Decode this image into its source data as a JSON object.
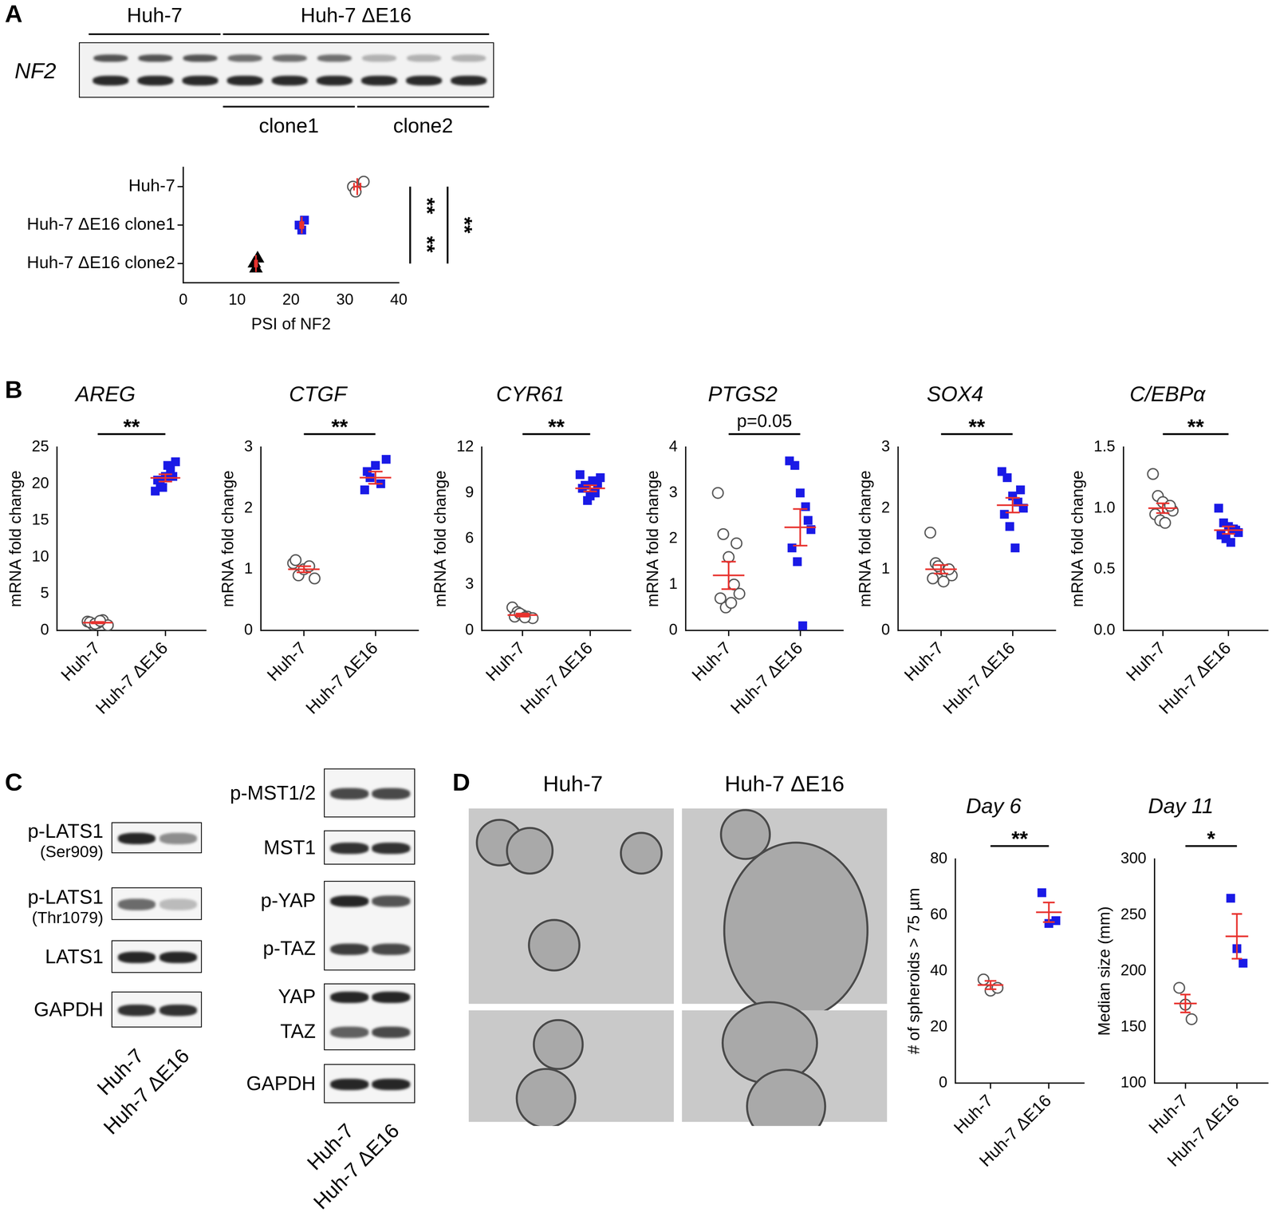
{
  "panel_labels": [
    "A",
    "B",
    "C",
    "D"
  ],
  "gel": {
    "gene": "NF2",
    "groups": [
      {
        "label": "Huh-7",
        "lanes": 3
      },
      {
        "label": "Huh-7 ΔE16",
        "lanes": 6
      }
    ],
    "subgroups": [
      {
        "label": "clone1",
        "lanes": 3
      },
      {
        "label": "clone2",
        "lanes": 3
      }
    ]
  },
  "blots": {
    "lanes": [
      "Huh-7",
      "Huh-7 ΔE16"
    ],
    "left": [
      {
        "labels": [
          "p-LATS1"
        ],
        "sublabel": "(Ser909)"
      },
      {
        "labels": [
          "p-LATS1"
        ],
        "sublabel": "(Thr1079)"
      },
      {
        "labels": [
          "LATS1"
        ]
      },
      {
        "labels": [
          "GAPDH"
        ]
      }
    ],
    "right": [
      {
        "labels": [
          "p-MST1/2"
        ]
      },
      {
        "labels": [
          "MST1"
        ]
      },
      {
        "labels": [
          "p-YAP",
          "p-TAZ"
        ]
      },
      {
        "labels": [
          "YAP",
          "TAZ"
        ]
      },
      {
        "labels": [
          "GAPDH"
        ]
      }
    ]
  },
  "micrographs": {
    "columns": [
      "Huh-7",
      "Huh-7 ΔE16"
    ]
  },
  "chart_data": [
    {
      "panel": "A",
      "type": "scatter",
      "orientation": "horizontal",
      "x_label": "PSI of NF2",
      "xlim": [
        0,
        40
      ],
      "xticks": [
        0,
        10,
        20,
        30,
        40
      ],
      "grid": false,
      "groups": [
        {
          "category": "Huh-7",
          "color": "#555555",
          "marker": "open_circle",
          "values": [
            33.5,
            31.5,
            32.0
          ],
          "mean": 32.3,
          "sem": 0.6
        },
        {
          "category": "Huh-7 ΔE16 clone1",
          "color": "#1a1ae6",
          "marker": "square",
          "values": [
            22.5,
            21.5,
            22.0
          ],
          "mean": 22.0,
          "sem": 0.3
        },
        {
          "category": "Huh-7 ΔE16 clone2",
          "color": "#000000",
          "marker": "triangle",
          "values": [
            13.8,
            13.2,
            13.5
          ],
          "mean": 13.5,
          "sem": 0.2
        }
      ],
      "annotations": [
        {
          "from": "Huh-7",
          "to": "Huh-7 ΔE16 clone1",
          "label": "**"
        },
        {
          "from": "Huh-7 ΔE16 clone1",
          "to": "Huh-7 ΔE16 clone2",
          "label": "**"
        },
        {
          "from": "Huh-7",
          "to": "Huh-7 ΔE16 clone2",
          "label": "**"
        }
      ]
    },
    {
      "panel": "B",
      "type": "scatter",
      "title": "AREG",
      "y_label": "mRNA fold change",
      "ylim": [
        0,
        25
      ],
      "yticks": [
        0,
        5,
        10,
        15,
        20,
        25
      ],
      "grid": false,
      "groups": [
        {
          "category": "Huh-7",
          "color": "#555555",
          "marker": "open_circle",
          "values": [
            1.2,
            0.8,
            1.0,
            1.4,
            0.7,
            1.1,
            0.9,
            1.3
          ],
          "mean": 1.05,
          "sem": 0.1
        },
        {
          "category": "Huh-7 ΔE16",
          "color": "#1a1ae6",
          "marker": "square",
          "values": [
            19.0,
            20.0,
            21.0,
            22.0,
            23.0,
            20.5,
            19.5,
            22.5,
            21.0
          ],
          "mean": 20.8,
          "sem": 0.5
        }
      ],
      "annotations": [
        {
          "from": "Huh-7",
          "to": "Huh-7 ΔE16",
          "label": "**"
        }
      ]
    },
    {
      "panel": "B",
      "type": "scatter",
      "title": "CTGF",
      "y_label": "mRNA fold change",
      "ylim": [
        0,
        3
      ],
      "yticks": [
        0,
        1,
        2,
        3
      ],
      "grid": false,
      "groups": [
        {
          "category": "Huh-7",
          "color": "#555555",
          "marker": "open_circle",
          "values": [
            1.1,
            0.9,
            1.0,
            1.05,
            0.85,
            1.15
          ],
          "mean": 1.0,
          "sem": 0.05
        },
        {
          "category": "Huh-7 ΔE16",
          "color": "#1a1ae6",
          "marker": "square",
          "values": [
            2.3,
            2.5,
            2.7,
            2.4,
            2.8,
            2.6
          ],
          "mean": 2.5,
          "sem": 0.1
        }
      ],
      "annotations": [
        {
          "from": "Huh-7",
          "to": "Huh-7 ΔE16",
          "label": "**"
        }
      ]
    },
    {
      "panel": "B",
      "type": "scatter",
      "title": "CYR61",
      "y_label": "mRNA fold change",
      "ylim": [
        0,
        12
      ],
      "yticks": [
        0,
        3,
        6,
        9,
        12
      ],
      "grid": false,
      "groups": [
        {
          "category": "Huh-7",
          "color": "#555555",
          "marker": "open_circle",
          "values": [
            1.5,
            1.2,
            1.0,
            0.9,
            0.8,
            0.9,
            1.1,
            0.85
          ],
          "mean": 1.0,
          "sem": 0.1
        },
        {
          "category": "Huh-7 ΔE16",
          "color": "#1a1ae6",
          "marker": "square",
          "values": [
            10.2,
            9.5,
            8.8,
            9.0,
            10.0,
            9.3,
            8.5,
            9.8,
            9.6
          ],
          "mean": 9.3,
          "sem": 0.2
        }
      ],
      "annotations": [
        {
          "from": "Huh-7",
          "to": "Huh-7 ΔE16",
          "label": "**"
        }
      ]
    },
    {
      "panel": "B",
      "type": "scatter",
      "title": "PTGS2",
      "y_label": "mRNA fold change",
      "ylim": [
        0,
        4
      ],
      "yticks": [
        0,
        1,
        2,
        3,
        4
      ],
      "grid": false,
      "groups": [
        {
          "category": "Huh-7",
          "color": "#555555",
          "marker": "open_circle",
          "values": [
            3.0,
            2.1,
            1.6,
            1.0,
            0.8,
            0.7,
            0.5,
            0.6,
            1.9
          ],
          "mean": 1.2,
          "sem": 0.3
        },
        {
          "category": "Huh-7 ΔE16",
          "color": "#1a1ae6",
          "marker": "square",
          "values": [
            3.7,
            3.6,
            3.0,
            2.7,
            2.2,
            1.8,
            1.5,
            0.1,
            2.4
          ],
          "mean": 2.25,
          "sem": 0.4
        }
      ],
      "annotations": [
        {
          "from": "Huh-7",
          "to": "Huh-7 ΔE16",
          "label": "p=0.05"
        }
      ]
    },
    {
      "panel": "B",
      "type": "scatter",
      "title": "SOX4",
      "y_label": "mRNA fold change",
      "ylim": [
        0,
        3
      ],
      "yticks": [
        0,
        1,
        2,
        3
      ],
      "grid": false,
      "groups": [
        {
          "category": "Huh-7",
          "color": "#555555",
          "marker": "open_circle",
          "values": [
            1.6,
            1.1,
            1.0,
            0.95,
            0.9,
            0.85,
            1.05,
            0.8,
            1.0
          ],
          "mean": 1.0,
          "sem": 0.07
        },
        {
          "category": "Huh-7 ΔE16",
          "color": "#1a1ae6",
          "marker": "square",
          "values": [
            2.6,
            2.5,
            2.2,
            2.1,
            2.0,
            1.9,
            1.7,
            1.35,
            2.3
          ],
          "mean": 2.05,
          "sem": 0.12
        }
      ],
      "annotations": [
        {
          "from": "Huh-7",
          "to": "Huh-7 ΔE16",
          "label": "**"
        }
      ]
    },
    {
      "panel": "B",
      "type": "scatter",
      "title": "C/EBPα",
      "y_label": "mRNA fold change",
      "ylim": [
        0,
        1.5
      ],
      "yticks": [
        {
          "value": 0,
          "label": "0.0"
        },
        {
          "value": 0.5,
          "label": "0.5"
        },
        {
          "value": 1,
          "label": "1.0"
        },
        {
          "value": 1.5,
          "label": "1.5"
        }
      ],
      "grid": false,
      "groups": [
        {
          "category": "Huh-7",
          "color": "#555555",
          "marker": "open_circle",
          "values": [
            1.28,
            1.1,
            1.05,
            1.0,
            0.98,
            0.95,
            0.9,
            0.88,
            1.02
          ],
          "mean": 1.0,
          "sem": 0.04
        },
        {
          "category": "Huh-7 ΔE16",
          "color": "#1a1ae6",
          "marker": "square",
          "values": [
            1.0,
            0.88,
            0.85,
            0.83,
            0.8,
            0.78,
            0.75,
            0.72,
            0.82
          ],
          "mean": 0.82,
          "sem": 0.03
        }
      ],
      "annotations": [
        {
          "from": "Huh-7",
          "to": "Huh-7 ΔE16",
          "label": "**"
        }
      ]
    },
    {
      "panel": "D",
      "type": "scatter",
      "title": "Day 6",
      "y_label": "# of spheroids > 75 µm",
      "ylim": [
        0,
        80
      ],
      "yticks": [
        0,
        20,
        40,
        60,
        80
      ],
      "grid": false,
      "groups": [
        {
          "category": "Huh-7",
          "color": "#555555",
          "marker": "open_circle",
          "values": [
            37,
            33,
            34
          ],
          "mean": 35,
          "sem": 1.5
        },
        {
          "category": "Huh-7 ΔE16",
          "color": "#1a1ae6",
          "marker": "square",
          "values": [
            68,
            57,
            58
          ],
          "mean": 61,
          "sem": 3.5
        }
      ],
      "annotations": [
        {
          "from": "Huh-7",
          "to": "Huh-7 ΔE16",
          "label": "**"
        }
      ]
    },
    {
      "panel": "D",
      "type": "scatter",
      "title": "Day 11",
      "y_label": "Median size (mm)",
      "ylim": [
        100,
        300
      ],
      "yticks": [
        100,
        150,
        200,
        250,
        300
      ],
      "grid": false,
      "groups": [
        {
          "category": "Huh-7",
          "color": "#555555",
          "marker": "open_circle",
          "values": [
            185,
            170,
            157
          ],
          "mean": 171,
          "sem": 8
        },
        {
          "category": "Huh-7 ΔE16",
          "color": "#1a1ae6",
          "marker": "square",
          "values": [
            265,
            220,
            207
          ],
          "mean": 231,
          "sem": 20
        }
      ],
      "annotations": [
        {
          "from": "Huh-7",
          "to": "Huh-7 ΔE16",
          "label": "*"
        }
      ]
    }
  ]
}
